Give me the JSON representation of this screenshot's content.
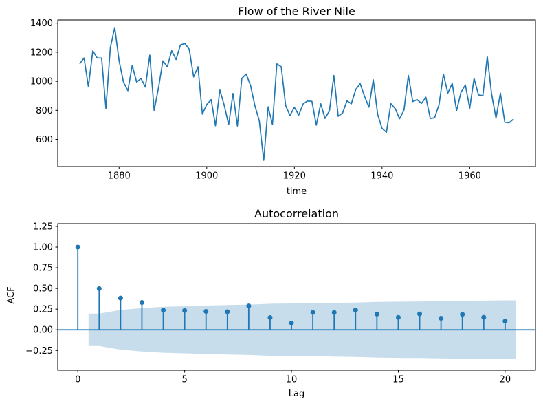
{
  "figure": {
    "background": "#ffffff",
    "accent_color": "#1f77b4",
    "text_color": "#000000"
  },
  "chart_data": [
    {
      "type": "line",
      "title": "Flow of the River Nile",
      "xlabel": "time",
      "ylabel": "",
      "x_start": 1871,
      "x_step": 1,
      "values": [
        1120,
        1160,
        963,
        1210,
        1160,
        1160,
        813,
        1230,
        1370,
        1140,
        995,
        935,
        1110,
        994,
        1020,
        960,
        1180,
        799,
        958,
        1140,
        1100,
        1210,
        1150,
        1250,
        1260,
        1220,
        1030,
        1100,
        774,
        840,
        874,
        694,
        940,
        833,
        701,
        916,
        692,
        1020,
        1050,
        969,
        831,
        726,
        456,
        824,
        702,
        1120,
        1100,
        832,
        764,
        821,
        768,
        845,
        864,
        862,
        698,
        845,
        744,
        796,
        1040,
        759,
        781,
        865,
        845,
        944,
        984,
        897,
        822,
        1010,
        771,
        676,
        649,
        846,
        812,
        742,
        801,
        1040,
        860,
        874,
        848,
        890,
        744,
        749,
        838,
        1050,
        918,
        986,
        797,
        923,
        975,
        815,
        1020,
        906,
        901,
        1170,
        912,
        746,
        919,
        718,
        714,
        740
      ],
      "xlim": [
        1866,
        1975
      ],
      "ylim": [
        413,
        1422
      ],
      "xticks": [
        1880,
        1900,
        1920,
        1940,
        1960
      ],
      "xtick_labels": [
        "1880",
        "1900",
        "1920",
        "1940",
        "1960"
      ],
      "yticks": [
        600,
        800,
        1000,
        1200,
        1400
      ],
      "ytick_labels": [
        "600",
        "800",
        "1000",
        "1200",
        "1400"
      ],
      "line_color": "#1f77b4",
      "grid": false,
      "legend": null
    },
    {
      "type": "stem",
      "title": "Autocorrelation",
      "xlabel": "Lag",
      "ylabel": "ACF",
      "lags": [
        0,
        1,
        2,
        3,
        4,
        5,
        6,
        7,
        8,
        9,
        10,
        11,
        12,
        13,
        14,
        15,
        16,
        17,
        18,
        19,
        20
      ],
      "acf": [
        1.0,
        0.498,
        0.383,
        0.33,
        0.237,
        0.233,
        0.222,
        0.218,
        0.288,
        0.147,
        0.082,
        0.21,
        0.21,
        0.238,
        0.19,
        0.15,
        0.191,
        0.139,
        0.186,
        0.151,
        0.104
      ],
      "conf_band": {
        "x": [
          0.5,
          1,
          2,
          3,
          4,
          5,
          6,
          7,
          8,
          9,
          10,
          11,
          12,
          13,
          14,
          15,
          16,
          17,
          18,
          19,
          20,
          20.5
        ],
        "halfwidth": [
          0.196,
          0.196,
          0.24,
          0.262,
          0.278,
          0.285,
          0.293,
          0.299,
          0.305,
          0.315,
          0.318,
          0.319,
          0.324,
          0.329,
          0.336,
          0.34,
          0.342,
          0.346,
          0.349,
          0.352,
          0.355,
          0.355
        ]
      },
      "xlim": [
        -0.94,
        21.42
      ],
      "ylim": [
        -0.489,
        1.283
      ],
      "xticks": [
        0,
        5,
        10,
        15,
        20
      ],
      "xtick_labels": [
        "0",
        "5",
        "10",
        "15",
        "20"
      ],
      "yticks": [
        -0.25,
        0.0,
        0.25,
        0.5,
        0.75,
        1.0,
        1.25
      ],
      "ytick_labels": [
        "−0.25",
        "0.00",
        "0.25",
        "0.50",
        "0.75",
        "1.00",
        "1.25"
      ],
      "stem_color": "#1f77b4",
      "marker_color": "#1f77b4",
      "band_color": "#1f77b4",
      "band_opacity": 0.25,
      "zero_line": true,
      "grid": false,
      "legend": null
    }
  ]
}
